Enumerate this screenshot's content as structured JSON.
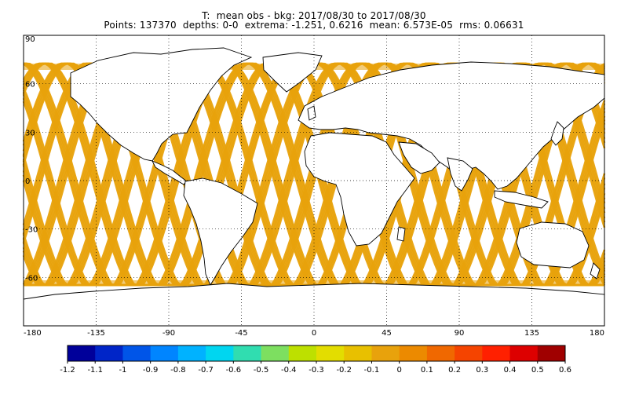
{
  "title": {
    "line1": "T:  mean obs - bkg: 2017/08/30 to 2017/08/30",
    "line2": "Points: 137370  depths: 0-0  extrema: -1.251, 0.6216  mean: 6.573E-05  rms: 0.06631"
  },
  "map": {
    "projection": "cylindrical",
    "lon_range": [
      -180,
      180
    ],
    "lat_range": [
      -90,
      90
    ],
    "lon_ticks": [
      "-180",
      "-135",
      "-90",
      "-45",
      "0",
      "45",
      "90",
      "135",
      "180"
    ],
    "lat_ticks": [
      "90",
      "60",
      "30",
      "0",
      "-30",
      "-60"
    ],
    "grid": "dotted",
    "track_color": "#e8a20c",
    "land_outline_color": "#000000"
  },
  "colorbar": {
    "labels": [
      "-1.2",
      "-1.1",
      "-1",
      "-0.9",
      "-0.8",
      "-0.7",
      "-0.6",
      "-0.5",
      "-0.4",
      "-0.3",
      "-0.2",
      "-0.1",
      "0",
      "0.1",
      "0.2",
      "0.3",
      "0.4",
      "0.5",
      "0.6"
    ],
    "colors": [
      "#00009a",
      "#0025c8",
      "#0055e8",
      "#0085ff",
      "#00b2ff",
      "#00d6f0",
      "#30ddb0",
      "#7ddf60",
      "#bde000",
      "#e3dd00",
      "#e8c000",
      "#e8a20c",
      "#ec8a00",
      "#f06800",
      "#f54400",
      "#ff2000",
      "#dd0000",
      "#a00000"
    ]
  }
}
